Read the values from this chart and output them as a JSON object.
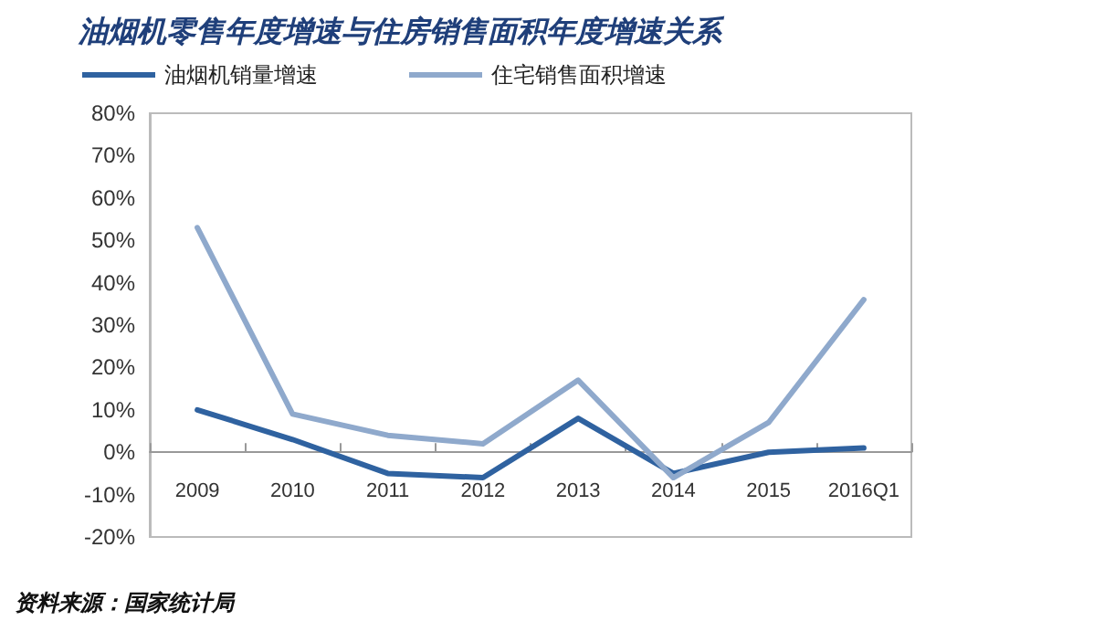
{
  "chart_data": {
    "type": "line",
    "title": "油烟机零售年度增速与住房销售面积年度增速关系",
    "annotations": [
      "资料来源：国家统计局"
    ],
    "categories": [
      "2009",
      "2010",
      "2011",
      "2012",
      "2013",
      "2014",
      "2015",
      "2016Q1"
    ],
    "series": [
      {
        "name": "油烟机销量增速",
        "color": "#2f62a0",
        "values": [
          10,
          3,
          -5,
          -6,
          8,
          -5,
          0,
          1
        ]
      },
      {
        "name": "住宅销售面积增速",
        "color": "#8fa9cc",
        "values": [
          53,
          9,
          4,
          2,
          17,
          -6,
          7,
          36
        ]
      }
    ],
    "ylim": [
      -20,
      80
    ],
    "yticks": [
      {
        "value": -20,
        "label": "-20%"
      },
      {
        "value": -10,
        "label": "-10%"
      },
      {
        "value": 0,
        "label": "0%"
      },
      {
        "value": 10,
        "label": "10%"
      },
      {
        "value": 20,
        "label": "20%"
      },
      {
        "value": 30,
        "label": "30%"
      },
      {
        "value": 40,
        "label": "40%"
      },
      {
        "value": 50,
        "label": "50%"
      },
      {
        "value": 60,
        "label": "60%"
      },
      {
        "value": 70,
        "label": "70%"
      },
      {
        "value": 80,
        "label": "80%"
      }
    ],
    "grid": false,
    "legend": "top left",
    "marker": "none",
    "line_style": "solid"
  }
}
